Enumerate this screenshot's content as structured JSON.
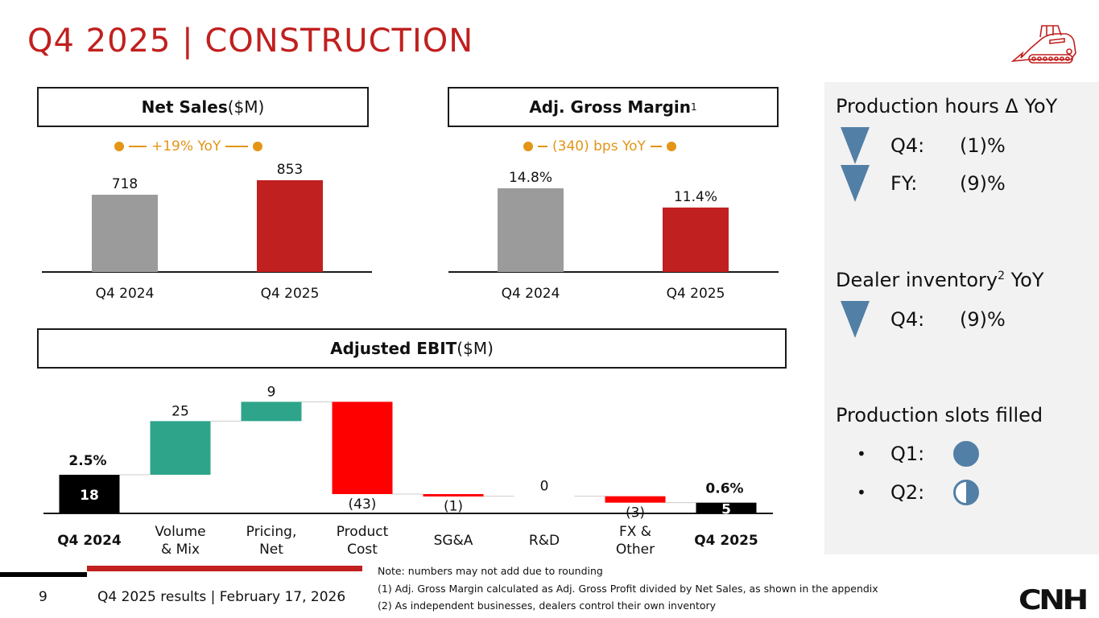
{
  "header": {
    "title": "Q4 2025 | CONSTRUCTION",
    "icon": "compact-track-loader-icon"
  },
  "net_sales": {
    "title_bold": "Net Sales",
    "title_unit": " ($M)",
    "yoy_label": "+19% YoY"
  },
  "gross_margin": {
    "title_bold": "Adj. Gross Margin",
    "title_sup": "1",
    "yoy_label": "(340) bps YoY"
  },
  "ebit": {
    "title_bold": "Adjusted EBIT",
    "title_unit": " ($M)"
  },
  "colors": {
    "title_red": "#c0201f",
    "prior_bar": "#9b9b9b",
    "current_bar": "#c0201f",
    "positive": "#2ea58a",
    "negative": "#ff0000",
    "total": "#000000",
    "yoy_orange": "#e39517",
    "indicator_blue": "#527fa6",
    "panel_bg": "#f2f2f2"
  },
  "chart_data": [
    {
      "type": "bar",
      "title": "Net Sales ($M)",
      "categories": [
        "Q4 2024",
        "Q4 2025"
      ],
      "values": [
        718,
        853
      ],
      "labels": [
        "718",
        "853"
      ],
      "annotation": "+19% YoY",
      "ylim": [
        0,
        1000
      ],
      "grid": false
    },
    {
      "type": "bar",
      "title": "Adj. Gross Margin",
      "categories": [
        "Q4 2024",
        "Q4 2025"
      ],
      "values": [
        14.8,
        11.4
      ],
      "labels": [
        "14.8%",
        "11.4%"
      ],
      "annotation": "(340) bps YoY",
      "ylim": [
        0,
        18
      ],
      "grid": false
    },
    {
      "type": "bar",
      "subtype": "waterfall",
      "title": "Adjusted EBIT ($M)",
      "categories": [
        "Q4 2024",
        "Volume & Mix",
        "Pricing, Net",
        "Product Cost",
        "SG&A",
        "R&D",
        "FX & Other",
        "Q4 2025"
      ],
      "category_lines": [
        [
          "Q4 2024"
        ],
        [
          "Volume",
          "& Mix"
        ],
        [
          "Pricing,",
          "Net"
        ],
        [
          "Product",
          "Cost"
        ],
        [
          "SG&A"
        ],
        [
          "R&D"
        ],
        [
          "FX &",
          "Other"
        ],
        [
          "Q4 2025"
        ]
      ],
      "values": [
        18,
        25,
        9,
        -43,
        -1,
        0,
        -3,
        5
      ],
      "kinds": [
        "total",
        "delta",
        "delta",
        "delta",
        "delta",
        "delta",
        "delta",
        "total"
      ],
      "labels": [
        "18",
        "25",
        "9",
        "(43)",
        "(1)",
        "0",
        "(3)",
        "5"
      ],
      "margins": {
        "Q4 2024": "2.5%",
        "Q4 2025": "0.6%"
      },
      "ylim": [
        0,
        60
      ],
      "grid": false
    }
  ],
  "side_panel": {
    "production_hours": {
      "heading": "Production hours Δ YoY",
      "rows": [
        {
          "label": "Q4:",
          "value": "(1)%",
          "direction": "down"
        },
        {
          "label": "FY:",
          "value": "(9)%",
          "direction": "down"
        }
      ]
    },
    "dealer_inventory": {
      "heading": "Dealer inventory",
      "heading_sup": "2",
      "heading_suffix": " YoY",
      "rows": [
        {
          "label": "Q4:",
          "value": "(9)%",
          "direction": "down"
        }
      ]
    },
    "production_slots": {
      "heading": "Production slots filled",
      "rows": [
        {
          "bullet": "•",
          "label": "Q1:",
          "fill": 1.0
        },
        {
          "bullet": "•",
          "label": "Q2:",
          "fill": 0.5
        }
      ]
    }
  },
  "footer": {
    "page_number": "9",
    "text": "Q4 2025 results | February 17, 2026",
    "notes": [
      "Note: numbers may not add due to rounding",
      "(1) Adj. Gross Margin calculated as Adj. Gross Profit divided by Net Sales, as shown in the appendix",
      "(2) As independent businesses, dealers control their own inventory"
    ],
    "logo": "CNH"
  }
}
